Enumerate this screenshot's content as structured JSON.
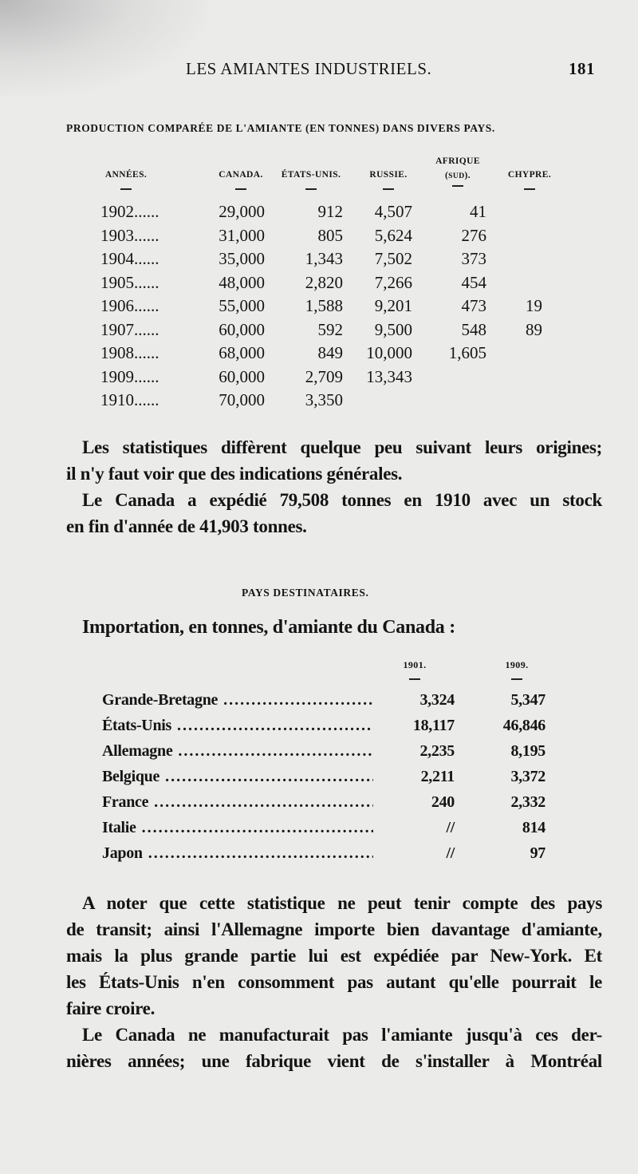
{
  "header": {
    "running_title": "LES AMIANTES INDUSTRIELS.",
    "page_number": "181"
  },
  "production_table": {
    "caption": "PRODUCTION COMPARÉE DE L'AMIANTE (EN TONNES) DANS DIVERS PAYS.",
    "columns": [
      "ANNÉES.",
      "CANADA.",
      "ÉTATS-UNIS.",
      "RUSSIE.",
      "AFRIQUE (SUD).",
      "CHYPRE."
    ],
    "rows": [
      {
        "year": "1902......",
        "canada": "29,000",
        "etats_unis": "912",
        "russie": "4,507",
        "afrique": "41",
        "chypre": ""
      },
      {
        "year": "1903......",
        "canada": "31,000",
        "etats_unis": "805",
        "russie": "5,624",
        "afrique": "276",
        "chypre": ""
      },
      {
        "year": "1904......",
        "canada": "35,000",
        "etats_unis": "1,343",
        "russie": "7,502",
        "afrique": "373",
        "chypre": ""
      },
      {
        "year": "1905......",
        "canada": "48,000",
        "etats_unis": "2,820",
        "russie": "7,266",
        "afrique": "454",
        "chypre": ""
      },
      {
        "year": "1906......",
        "canada": "55,000",
        "etats_unis": "1,588",
        "russie": "9,201",
        "afrique": "473",
        "chypre": "19"
      },
      {
        "year": "1907......",
        "canada": "60,000",
        "etats_unis": "592",
        "russie": "9,500",
        "afrique": "548",
        "chypre": "89"
      },
      {
        "year": "1908......",
        "canada": "68,000",
        "etats_unis": "849",
        "russie": "10,000",
        "afrique": "1,605",
        "chypre": ""
      },
      {
        "year": "1909......",
        "canada": "60,000",
        "etats_unis": "2,709",
        "russie": "13,343",
        "afrique": "",
        "chypre": ""
      },
      {
        "year": "1910......",
        "canada": "70,000",
        "etats_unis": "3,350",
        "russie": "",
        "afrique": "",
        "chypre": ""
      }
    ]
  },
  "paragraph1": [
    "Les statistiques diffèrent quelque peu suivant leurs origines;",
    "il n'y faut voir que des indications générales."
  ],
  "paragraph2": [
    "Le Canada a expédié 79,508 tonnes en 1910 avec un stock",
    "en fin d'année de 41,903 tonnes."
  ],
  "section_title": "PAYS DESTINATAIRES.",
  "import_heading": "Importation, en tonnes, d'amiante du Canada :",
  "import_table": {
    "columns": [
      "1901.",
      "1909."
    ],
    "rows": [
      {
        "country": "Grande-Bretagne",
        "y1901": "3,324",
        "y1909": "5,347"
      },
      {
        "country": "États-Unis",
        "y1901": "18,117",
        "y1909": "46,846"
      },
      {
        "country": "Allemagne",
        "y1901": "2,235",
        "y1909": "8,195"
      },
      {
        "country": "Belgique",
        "y1901": "2,211",
        "y1909": "3,372"
      },
      {
        "country": "France",
        "y1901": "240",
        "y1909": "2,332"
      },
      {
        "country": "Italie",
        "y1901": "//",
        "y1909": "814"
      },
      {
        "country": "Japon",
        "y1901": "//",
        "y1909": "97"
      }
    ]
  },
  "paragraph3": [
    "A noter que cette statistique ne peut tenir compte des pays",
    "de transit; ainsi l'Allemagne importe bien davantage d'amiante,",
    "mais la plus grande partie lui est expédiée par New-York. Et",
    "les États-Unis n'en consomment pas autant qu'elle pourrait le",
    "faire croire."
  ],
  "paragraph4": [
    "Le Canada ne manufacturait pas l'amiante jusqu'à ces der-",
    "nières années; une fabrique vient de s'installer à Montréal"
  ]
}
